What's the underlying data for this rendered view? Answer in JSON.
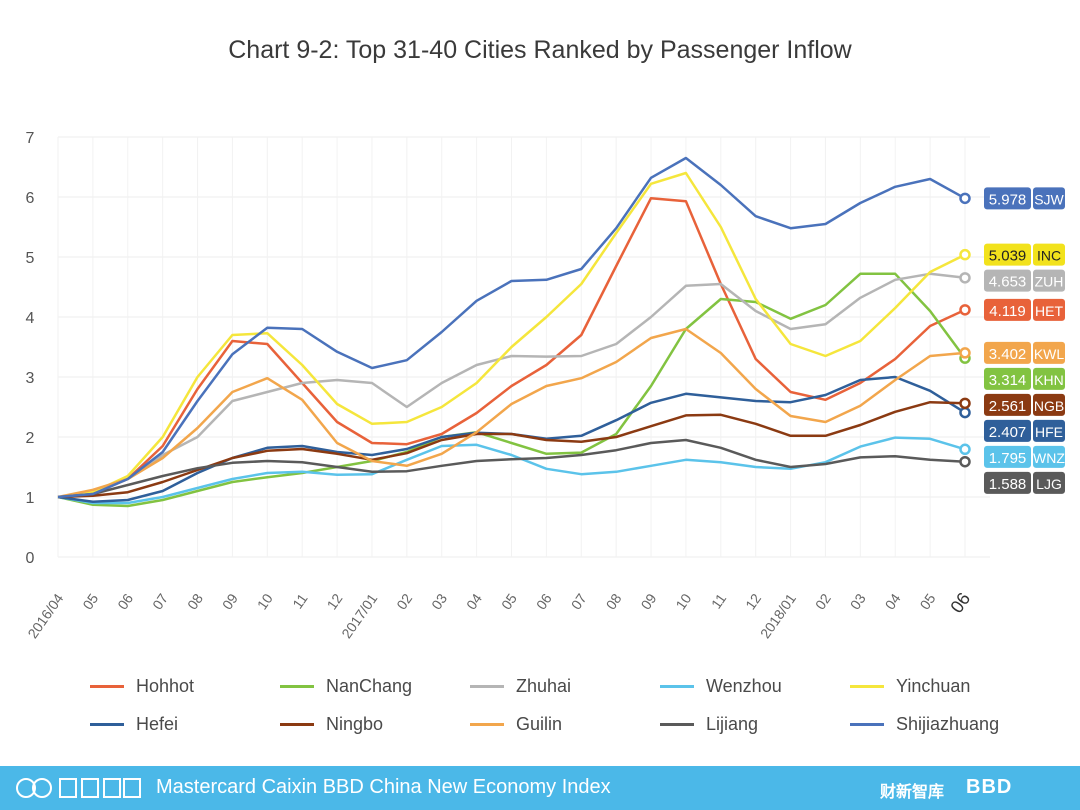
{
  "chart_data": {
    "type": "line",
    "title": "Chart 9-2: Top 31-40 Cities Ranked by Passenger Inflow",
    "ylim": [
      0,
      7
    ],
    "yticks": [
      0,
      1,
      2,
      3,
      4,
      5,
      6,
      7
    ],
    "grid": true,
    "x": [
      "2016/04",
      "05",
      "06",
      "07",
      "08",
      "09",
      "10",
      "11",
      "12",
      "2017/01",
      "02",
      "03",
      "04",
      "05",
      "06",
      "07",
      "08",
      "09",
      "10",
      "11",
      "12",
      "2018/01",
      "02",
      "03",
      "04",
      "05",
      "06"
    ],
    "legend_position": "bottom",
    "series": [
      {
        "name": "Hohhot",
        "color": "#e8623a",
        "values": [
          1.0,
          1.05,
          1.3,
          1.85,
          2.8,
          3.6,
          3.55,
          2.9,
          2.25,
          1.9,
          1.88,
          2.05,
          2.4,
          2.85,
          3.2,
          3.7,
          4.85,
          5.98,
          5.93,
          4.55,
          3.3,
          2.75,
          2.62,
          2.9,
          3.3,
          3.85,
          4.119
        ],
        "end_label": "4.119",
        "end_code": "HET",
        "end_color": "#e8623a"
      },
      {
        "name": "NanChang",
        "color": "#82c341",
        "values": [
          1.0,
          0.87,
          0.85,
          0.95,
          1.1,
          1.25,
          1.33,
          1.4,
          1.5,
          1.6,
          1.75,
          2.0,
          2.08,
          1.9,
          1.72,
          1.74,
          2.05,
          2.85,
          3.8,
          4.3,
          4.25,
          3.97,
          4.2,
          4.72,
          4.72,
          4.1,
          3.314
        ],
        "end_label": "3.314",
        "end_code": "KHN",
        "end_color": "#82c341"
      },
      {
        "name": "Zhuhai",
        "color": "#b5b5b5",
        "values": [
          1.0,
          1.05,
          1.3,
          1.7,
          2.0,
          2.6,
          2.75,
          2.9,
          2.95,
          2.9,
          2.5,
          2.9,
          3.2,
          3.35,
          3.34,
          3.35,
          3.55,
          4.0,
          4.52,
          4.55,
          4.1,
          3.8,
          3.88,
          4.32,
          4.62,
          4.72,
          4.653
        ],
        "end_label": "4.653",
        "end_code": "ZUH",
        "end_color": "#b5b5b5"
      },
      {
        "name": "Wenzhou",
        "color": "#5bc3ea",
        "values": [
          1.0,
          0.9,
          0.9,
          1.0,
          1.15,
          1.3,
          1.4,
          1.42,
          1.37,
          1.38,
          1.62,
          1.85,
          1.87,
          1.7,
          1.47,
          1.38,
          1.42,
          1.52,
          1.62,
          1.58,
          1.5,
          1.47,
          1.58,
          1.84,
          1.99,
          1.97,
          1.795
        ],
        "end_label": "1.795",
        "end_code": "WNZ",
        "end_color": "#5bc3ea"
      },
      {
        "name": "Yinchuan",
        "color": "#f5e63c",
        "values": [
          1.0,
          1.08,
          1.35,
          2.0,
          3.0,
          3.7,
          3.73,
          3.2,
          2.55,
          2.22,
          2.25,
          2.5,
          2.9,
          3.5,
          4.0,
          4.55,
          5.4,
          6.22,
          6.4,
          5.5,
          4.3,
          3.55,
          3.35,
          3.6,
          4.15,
          4.75,
          5.039
        ],
        "end_label": "5.039",
        "end_code": "INC",
        "end_color": "#f2e21c"
      },
      {
        "name": "Hefei",
        "color": "#2f5f9a",
        "values": [
          1.0,
          0.92,
          0.95,
          1.1,
          1.4,
          1.65,
          1.82,
          1.85,
          1.75,
          1.7,
          1.8,
          2.0,
          2.07,
          2.05,
          1.97,
          2.02,
          2.28,
          2.57,
          2.72,
          2.66,
          2.6,
          2.58,
          2.7,
          2.95,
          3.0,
          2.77,
          2.407
        ],
        "end_label": "2.407",
        "end_code": "HFE",
        "end_color": "#2f5f9a"
      },
      {
        "name": "Ningbo",
        "color": "#8b3a12",
        "values": [
          1.0,
          1.02,
          1.08,
          1.25,
          1.45,
          1.65,
          1.77,
          1.8,
          1.72,
          1.62,
          1.73,
          1.95,
          2.05,
          2.05,
          1.95,
          1.92,
          2.0,
          2.18,
          2.36,
          2.37,
          2.22,
          2.02,
          2.02,
          2.2,
          2.42,
          2.58,
          2.561
        ],
        "end_label": "2.561",
        "end_code": "NGB",
        "end_color": "#8b3a12"
      },
      {
        "name": "Guilin",
        "color": "#f2a64c",
        "values": [
          1.0,
          1.12,
          1.3,
          1.65,
          2.15,
          2.75,
          2.98,
          2.62,
          1.9,
          1.6,
          1.52,
          1.72,
          2.08,
          2.55,
          2.85,
          2.98,
          3.25,
          3.65,
          3.8,
          3.4,
          2.8,
          2.35,
          2.25,
          2.52,
          2.95,
          3.35,
          3.402
        ],
        "end_label": "3.402",
        "end_code": "KWL",
        "end_color": "#f2a64c"
      },
      {
        "name": "Lijiang",
        "color": "#5a5a5a",
        "values": [
          1.0,
          1.05,
          1.2,
          1.35,
          1.48,
          1.57,
          1.6,
          1.58,
          1.5,
          1.42,
          1.43,
          1.52,
          1.6,
          1.63,
          1.65,
          1.7,
          1.78,
          1.9,
          1.95,
          1.82,
          1.62,
          1.5,
          1.55,
          1.66,
          1.68,
          1.62,
          1.588
        ],
        "end_label": "1.588",
        "end_code": "LJG",
        "end_color": "#5a5a5a"
      },
      {
        "name": "Shijiazhuang",
        "color": "#4a72bb",
        "values": [
          1.0,
          1.05,
          1.3,
          1.75,
          2.6,
          3.38,
          3.82,
          3.8,
          3.42,
          3.15,
          3.28,
          3.75,
          4.27,
          4.6,
          4.62,
          4.8,
          5.48,
          6.32,
          6.65,
          6.2,
          5.68,
          5.48,
          5.55,
          5.9,
          6.17,
          6.3,
          5.978
        ],
        "end_label": "5.978",
        "end_code": "SJW",
        "end_color": "#4a72bb"
      }
    ]
  },
  "footer": {
    "text": "Mastercard Caixin BBD China New Economy Index",
    "brand1": "财新智库",
    "brand2": "BBD"
  }
}
